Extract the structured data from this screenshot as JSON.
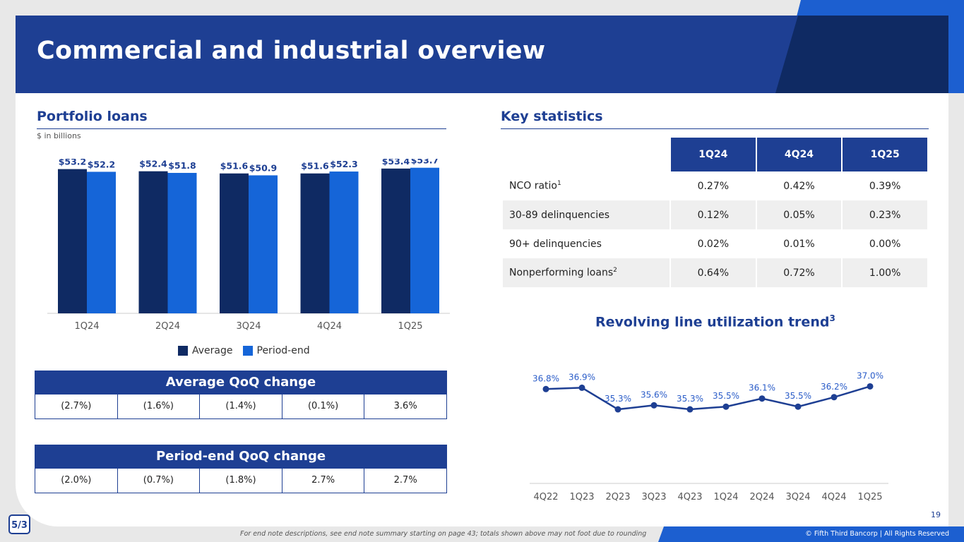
{
  "title": "Commercial and industrial overview",
  "portfolio": {
    "heading": "Portfolio loans",
    "units": "$ in billions"
  },
  "colors": {
    "average": "#0f2a63",
    "period_end": "#1565d8",
    "brand": "#1e3f93"
  },
  "chart_data": [
    {
      "type": "bar",
      "title": "Portfolio loans",
      "ylabel": "$ in billions",
      "categories": [
        "1Q24",
        "2Q24",
        "3Q24",
        "4Q24",
        "1Q25"
      ],
      "series": [
        {
          "name": "Average",
          "values": [
            53.2,
            52.4,
            51.6,
            51.6,
            53.4
          ],
          "labels": [
            "$53.2",
            "$52.4",
            "$51.6",
            "$51.6",
            "$53.4"
          ]
        },
        {
          "name": "Period-end",
          "values": [
            52.2,
            51.8,
            50.9,
            52.3,
            53.7
          ],
          "labels": [
            "$52.2",
            "$51.8",
            "$50.9",
            "$52.3",
            "$53.7"
          ]
        }
      ],
      "ylim": [
        0,
        57
      ],
      "legend": "bottom"
    },
    {
      "type": "line",
      "title": "Revolving line utilization trend",
      "title_sup": "3",
      "categories": [
        "4Q22",
        "1Q23",
        "2Q23",
        "3Q23",
        "4Q23",
        "1Q24",
        "2Q24",
        "3Q24",
        "4Q24",
        "1Q25"
      ],
      "values": [
        36.8,
        36.9,
        35.3,
        35.6,
        35.3,
        35.5,
        36.1,
        35.5,
        36.2,
        37.0
      ],
      "labels": [
        "36.8%",
        "36.9%",
        "35.3%",
        "35.6%",
        "35.3%",
        "35.5%",
        "36.1%",
        "35.5%",
        "36.2%",
        "37.0%"
      ],
      "ylim": [
        24,
        40
      ]
    }
  ],
  "average_qoq": {
    "title": "Average QoQ change",
    "values": [
      "(2.7%)",
      "(1.6%)",
      "(1.4%)",
      "(0.1%)",
      "3.6%"
    ]
  },
  "period_end_qoq": {
    "title": "Period-end QoQ change",
    "values": [
      "(2.0%)",
      "(0.7%)",
      "(1.8%)",
      "2.7%",
      "2.7%"
    ]
  },
  "key_statistics": {
    "heading": "Key statistics",
    "columns": [
      "1Q24",
      "4Q24",
      "1Q25"
    ],
    "rows": [
      {
        "label": "NCO ratio",
        "sup": "1",
        "values": [
          "0.27%",
          "0.42%",
          "0.39%"
        ]
      },
      {
        "label": "30-89 delinquencies",
        "sup": "",
        "values": [
          "0.12%",
          "0.05%",
          "0.23%"
        ]
      },
      {
        "label": "90+ delinquencies",
        "sup": "",
        "values": [
          "0.02%",
          "0.01%",
          "0.00%"
        ]
      },
      {
        "label": "Nonperforming loans",
        "sup": "2",
        "values": [
          "0.64%",
          "0.72%",
          "1.00%"
        ]
      }
    ]
  },
  "footer": {
    "page_number": "19",
    "footnote": "For end note descriptions, see end note summary starting on page 43; totals shown above may not foot due to rounding",
    "copyright": "© Fifth Third Bancorp | All Rights Reserved",
    "logo_text": "5/3"
  }
}
